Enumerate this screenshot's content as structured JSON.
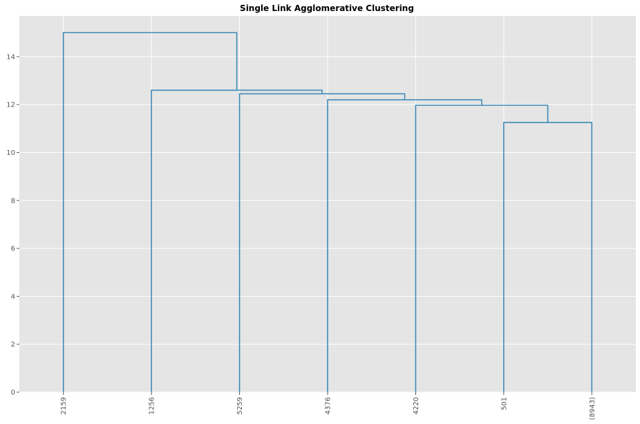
{
  "chart_data": {
    "type": "dendrogram",
    "title": "Single Link Agglomerative Clustering",
    "xlabel": "",
    "ylabel": "",
    "leaves": [
      "2159",
      "1256",
      "5259",
      "4376",
      "4220",
      "501",
      "(8943)"
    ],
    "ylim": [
      0,
      15.7
    ],
    "yticks": [
      0,
      2,
      4,
      6,
      8,
      10,
      12,
      14
    ],
    "grid": true,
    "link_color": "#3d8ab8",
    "background": "#e5e5e5",
    "merges": [
      {
        "left": "501",
        "right": "(8943)",
        "height": 11.25
      },
      {
        "left": "4220",
        "right": "cluster(501,(8943))",
        "height": 11.97
      },
      {
        "left": "4376",
        "right": "cluster(4220,501,(8943))",
        "height": 12.2
      },
      {
        "left": "5259",
        "right": "cluster(4376,4220,501,(8943))",
        "height": 12.45
      },
      {
        "left": "1256",
        "right": "cluster(5259,4376,4220,501,(8943))",
        "height": 12.6
      },
      {
        "left": "2159",
        "right": "cluster(1256,5259,4376,4220,501,(8943))",
        "height": 15.0
      }
    ]
  }
}
